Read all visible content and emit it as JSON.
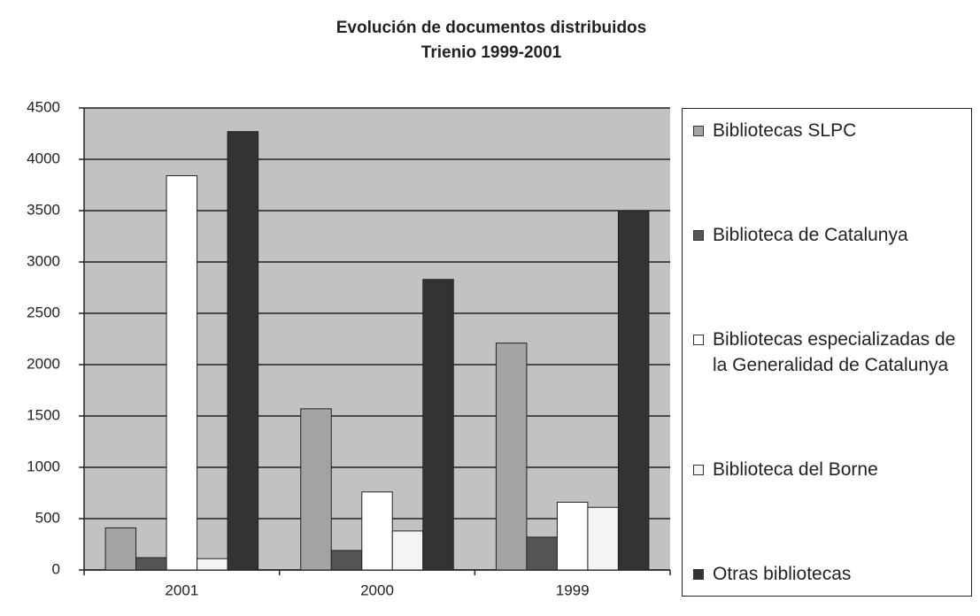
{
  "chart_data": {
    "type": "bar",
    "title": "Evolución de documentos distribuidos",
    "subtitle": "Trienio 1999-2001",
    "categories": [
      "2001",
      "2000",
      "1999"
    ],
    "series": [
      {
        "name": "Bibliotecas SLPC",
        "color": "#a3a3a3",
        "values": [
          410,
          1570,
          2210
        ]
      },
      {
        "name": "Biblioteca de Catalunya",
        "color": "#555555",
        "values": [
          120,
          190,
          320
        ]
      },
      {
        "name": "Bibliotecas especializadas de la Generalidad de Catalunya",
        "color": "#ffffff",
        "values": [
          3840,
          760,
          660
        ]
      },
      {
        "name": "Biblioteca del Borne",
        "color": "#f4f4f4",
        "values": [
          110,
          380,
          610
        ]
      },
      {
        "name": "Otras bibliotecas",
        "color": "#333333",
        "values": [
          4270,
          2830,
          3500
        ]
      }
    ],
    "ylim": [
      0,
      4500
    ],
    "yticks": [
      0,
      500,
      1000,
      1500,
      2000,
      2500,
      3000,
      3500,
      4000,
      4500
    ],
    "grid": true,
    "legend": "right"
  }
}
